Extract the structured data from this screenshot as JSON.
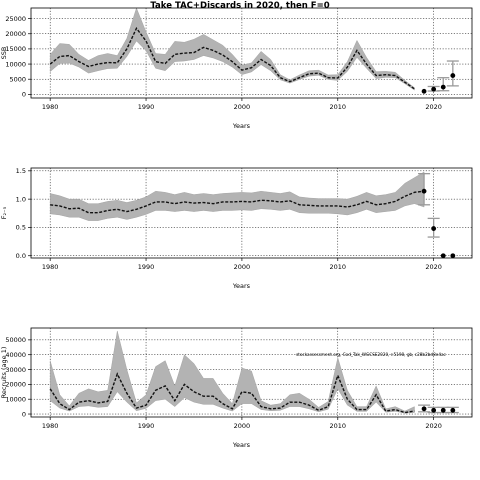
{
  "title": "Take TAC+Discards in 2020, then F=0",
  "annotation": "stockassessment.org, Cod_Tak_WGCSE2020, r.5198, gb, c28b2bd8e4ac",
  "chart_data": [
    {
      "type": "line",
      "xlabel": "Years",
      "ylabel": "SSB",
      "xlim": [
        1978,
        2024
      ],
      "ylim": [
        -1200,
        28500
      ],
      "xticks": [
        1980,
        1990,
        2000,
        2010,
        2020
      ],
      "yticks": [
        0,
        5000,
        10000,
        15000,
        20000,
        25000
      ],
      "ytick_labels": [
        "0",
        "5000",
        "10000",
        "15000",
        "20000",
        "25000"
      ],
      "grid": true,
      "years": [
        1980,
        1981,
        1982,
        1983,
        1984,
        1985,
        1986,
        1987,
        1988,
        1989,
        1990,
        1991,
        1992,
        1993,
        1994,
        1995,
        1996,
        1997,
        1998,
        1999,
        2000,
        2001,
        2002,
        2003,
        2004,
        2005,
        2006,
        2007,
        2008,
        2009,
        2010,
        2011,
        2012,
        2013,
        2014,
        2015,
        2016,
        2017,
        2018
      ],
      "estimate": [
        10000,
        12500,
        12800,
        10800,
        9200,
        10000,
        10500,
        10400,
        15000,
        21800,
        17600,
        10800,
        10200,
        13200,
        13600,
        13800,
        15500,
        14500,
        13000,
        10800,
        8000,
        8800,
        11500,
        9500,
        5500,
        4200,
        5500,
        6800,
        7000,
        5500,
        5400,
        9000,
        14500,
        10000,
        6200,
        6500,
        6200,
        4000,
        1800
      ],
      "lower": [
        7500,
        10200,
        10300,
        9000,
        7000,
        7800,
        8500,
        8600,
        12500,
        17600,
        14400,
        8600,
        7800,
        10800,
        11000,
        11500,
        12800,
        12000,
        10800,
        9000,
        6500,
        7400,
        9800,
        7800,
        4800,
        3700,
        4900,
        6000,
        6300,
        4900,
        4600,
        7600,
        12200,
        8600,
        5200,
        5600,
        5500,
        3500,
        1400
      ],
      "upper": [
        13200,
        16800,
        16500,
        13200,
        11200,
        12800,
        13500,
        12800,
        18500,
        28500,
        20600,
        13500,
        13200,
        17500,
        17200,
        18200,
        19800,
        18000,
        16200,
        13200,
        9600,
        10400,
        14200,
        11500,
        6500,
        4800,
        6400,
        7800,
        8000,
        6400,
        6500,
        10800,
        17800,
        12200,
        7500,
        7600,
        7300,
        4600,
        2200
      ],
      "projection": [
        {
          "year": 2019,
          "point": 1000,
          "low": 1000,
          "high": 1000
        },
        {
          "year": 2020,
          "point": 1700,
          "low": 1100,
          "high": 2600
        },
        {
          "year": 2021,
          "point": 2400,
          "low": 1200,
          "high": 5500
        },
        {
          "year": 2022,
          "point": 6200,
          "low": 2800,
          "high": 11000
        }
      ]
    },
    {
      "type": "line",
      "xlabel": "Years",
      "ylabel": "F₂₋₅",
      "xlim": [
        1978,
        2024
      ],
      "ylim": [
        -0.04,
        1.55
      ],
      "xticks": [
        1980,
        1990,
        2000,
        2010,
        2020
      ],
      "yticks": [
        0,
        0.5,
        1.0,
        1.5
      ],
      "ytick_labels": [
        "0.0",
        "0.5",
        "1.0",
        "1.5"
      ],
      "grid": true,
      "years": [
        1980,
        1981,
        1982,
        1983,
        1984,
        1985,
        1986,
        1987,
        1988,
        1989,
        1990,
        1991,
        1992,
        1993,
        1994,
        1995,
        1996,
        1997,
        1998,
        1999,
        2000,
        2001,
        2002,
        2003,
        2004,
        2005,
        2006,
        2007,
        2008,
        2009,
        2010,
        2011,
        2012,
        2013,
        2014,
        2015,
        2016,
        2017,
        2018,
        2019
      ],
      "estimate": [
        0.9,
        0.88,
        0.83,
        0.84,
        0.76,
        0.76,
        0.8,
        0.82,
        0.78,
        0.82,
        0.88,
        0.95,
        0.95,
        0.92,
        0.95,
        0.93,
        0.94,
        0.92,
        0.95,
        0.95,
        0.96,
        0.95,
        0.98,
        0.97,
        0.95,
        0.97,
        0.9,
        0.89,
        0.88,
        0.88,
        0.88,
        0.86,
        0.9,
        0.96,
        0.9,
        0.92,
        0.96,
        1.05,
        1.12,
        1.14
      ],
      "lower": [
        0.74,
        0.72,
        0.68,
        0.68,
        0.62,
        0.62,
        0.66,
        0.68,
        0.64,
        0.68,
        0.73,
        0.8,
        0.8,
        0.78,
        0.8,
        0.78,
        0.8,
        0.78,
        0.8,
        0.8,
        0.81,
        0.8,
        0.83,
        0.82,
        0.8,
        0.82,
        0.76,
        0.75,
        0.75,
        0.75,
        0.74,
        0.72,
        0.76,
        0.82,
        0.76,
        0.78,
        0.8,
        0.88,
        0.92,
        0.86
      ],
      "upper": [
        1.1,
        1.06,
        1.0,
        1.0,
        0.92,
        0.92,
        0.96,
        0.98,
        0.94,
        0.98,
        1.04,
        1.14,
        1.12,
        1.08,
        1.12,
        1.08,
        1.1,
        1.08,
        1.1,
        1.11,
        1.12,
        1.11,
        1.14,
        1.12,
        1.1,
        1.13,
        1.04,
        1.02,
        1.01,
        1.01,
        1.01,
        1.0,
        1.05,
        1.12,
        1.06,
        1.08,
        1.12,
        1.28,
        1.38,
        1.48
      ],
      "projection": [
        {
          "year": 2019,
          "point": 1.14,
          "low": 0.9,
          "high": 1.45
        },
        {
          "year": 2020,
          "point": 0.48,
          "low": 0.33,
          "high": 0.66
        },
        {
          "year": 2021,
          "point": 0.0,
          "low": 0.0,
          "high": 0.0
        },
        {
          "year": 2022,
          "point": 0.0,
          "low": 0.0,
          "high": 0.0
        }
      ]
    },
    {
      "type": "line",
      "xlabel": "Years",
      "ylabel": "Recruits (age 1)",
      "xlim": [
        1978,
        2024
      ],
      "ylim": [
        -2000,
        58000
      ],
      "xticks": [
        1980,
        1990,
        2000,
        2010,
        2020
      ],
      "yticks": [
        0,
        10000,
        20000,
        30000,
        40000,
        50000
      ],
      "ytick_labels": [
        "0",
        "10000",
        "20000",
        "30000",
        "40000",
        "50000"
      ],
      "grid": true,
      "years": [
        1980,
        1981,
        1982,
        1983,
        1984,
        1985,
        1986,
        1987,
        1988,
        1989,
        1990,
        1991,
        1992,
        1993,
        1994,
        1995,
        1996,
        1997,
        1998,
        1999,
        2000,
        2001,
        2002,
        2003,
        2004,
        2005,
        2006,
        2007,
        2008,
        2009,
        2010,
        2011,
        2012,
        2013,
        2014,
        2015,
        2016,
        2017,
        2018
      ],
      "estimate": [
        17000,
        7000,
        3000,
        8000,
        9000,
        7500,
        8500,
        27000,
        14000,
        4000,
        6000,
        16000,
        19000,
        9000,
        20000,
        15000,
        12000,
        12000,
        7000,
        3500,
        15000,
        14000,
        5000,
        3500,
        4000,
        8000,
        8000,
        6000,
        2500,
        5000,
        26000,
        10000,
        3000,
        3000,
        13000,
        2000,
        3000,
        1000,
        2000
      ],
      "lower": [
        9000,
        4000,
        2000,
        5000,
        5500,
        4500,
        5000,
        15000,
        8000,
        2200,
        3800,
        9000,
        10000,
        5000,
        11000,
        8000,
        6500,
        6500,
        4000,
        2000,
        7000,
        7000,
        3000,
        2200,
        2500,
        5000,
        5000,
        3500,
        1500,
        3200,
        17000,
        6000,
        1800,
        1800,
        8000,
        1200,
        1800,
        600,
        1000
      ],
      "upper": [
        36000,
        13000,
        5500,
        14000,
        17000,
        15000,
        16000,
        56000,
        30000,
        7500,
        13000,
        32000,
        36000,
        19000,
        40000,
        34000,
        24000,
        24000,
        14000,
        7000,
        31000,
        29000,
        9000,
        6000,
        7000,
        13000,
        14000,
        10000,
        4500,
        8500,
        38000,
        16000,
        5000,
        5000,
        19000,
        3500,
        5000,
        2000,
        5000
      ],
      "projection": [
        {
          "year": 2019,
          "point": 3500,
          "low": 1500,
          "high": 6000
        },
        {
          "year": 2020,
          "point": 2500,
          "low": 1000,
          "high": 4500
        },
        {
          "year": 2021,
          "point": 2500,
          "low": 1000,
          "high": 4500
        },
        {
          "year": 2022,
          "point": 2500,
          "low": 1000,
          "high": 4500
        }
      ]
    }
  ]
}
